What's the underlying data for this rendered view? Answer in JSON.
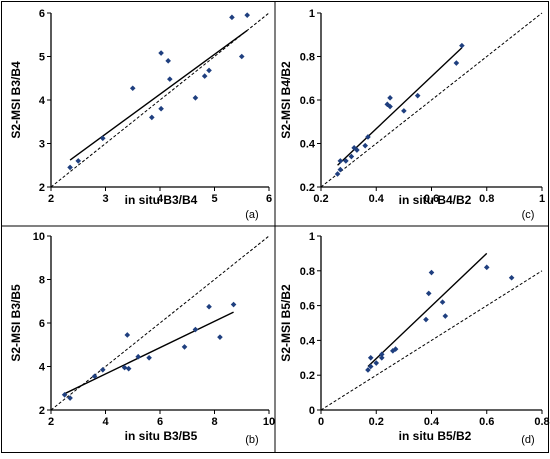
{
  "chart_data": [
    {
      "type": "scatter",
      "panel_label": "(a)",
      "xlabel": "in situ B3/B4",
      "ylabel": "S2-MSI B3/B4",
      "xlim": [
        2,
        6
      ],
      "ylim": [
        2,
        6
      ],
      "xticks": [
        2,
        3,
        4,
        5,
        6
      ],
      "yticks": [
        2,
        3,
        4,
        5,
        6
      ],
      "xtick_labels": [
        "2",
        "3",
        "4",
        "5",
        "6"
      ],
      "ytick_labels": [
        "2",
        "3",
        "4",
        "5",
        "6"
      ],
      "grid": false,
      "one_to_one_line": true,
      "points": [
        {
          "x": 2.35,
          "y": 2.45
        },
        {
          "x": 2.5,
          "y": 2.6
        },
        {
          "x": 2.95,
          "y": 3.12
        },
        {
          "x": 3.5,
          "y": 4.27
        },
        {
          "x": 3.85,
          "y": 3.6
        },
        {
          "x": 4.02,
          "y": 3.8
        },
        {
          "x": 4.02,
          "y": 5.08
        },
        {
          "x": 4.15,
          "y": 4.9
        },
        {
          "x": 4.18,
          "y": 4.48
        },
        {
          "x": 4.65,
          "y": 4.05
        },
        {
          "x": 4.82,
          "y": 4.55
        },
        {
          "x": 4.9,
          "y": 4.68
        },
        {
          "x": 5.32,
          "y": 5.9
        },
        {
          "x": 5.5,
          "y": 5.0
        },
        {
          "x": 5.6,
          "y": 5.95
        }
      ],
      "fit_line": [
        {
          "x": 2.35,
          "y": 2.62
        },
        {
          "x": 5.6,
          "y": 5.6
        }
      ]
    },
    {
      "type": "scatter",
      "panel_label": "(c)",
      "xlabel": "in situ B4/B2",
      "ylabel": "S2-MSI B4/B2",
      "xlim": [
        0.2,
        1
      ],
      "ylim": [
        0.2,
        1
      ],
      "xticks": [
        0.2,
        0.4,
        0.6,
        0.8,
        1
      ],
      "yticks": [
        0.2,
        0.4,
        0.6,
        0.8,
        1
      ],
      "xtick_labels": [
        "0.2",
        "0.4",
        "0.6",
        "0.8",
        "1"
      ],
      "ytick_labels": [
        "0.2",
        "0.4",
        "0.6",
        "0.8",
        "1"
      ],
      "grid": false,
      "one_to_one_line": true,
      "points": [
        {
          "x": 0.26,
          "y": 0.26
        },
        {
          "x": 0.27,
          "y": 0.28
        },
        {
          "x": 0.27,
          "y": 0.32
        },
        {
          "x": 0.29,
          "y": 0.32
        },
        {
          "x": 0.31,
          "y": 0.34
        },
        {
          "x": 0.32,
          "y": 0.38
        },
        {
          "x": 0.33,
          "y": 0.37
        },
        {
          "x": 0.36,
          "y": 0.39
        },
        {
          "x": 0.37,
          "y": 0.43
        },
        {
          "x": 0.44,
          "y": 0.58
        },
        {
          "x": 0.45,
          "y": 0.61
        },
        {
          "x": 0.45,
          "y": 0.57
        },
        {
          "x": 0.5,
          "y": 0.55
        },
        {
          "x": 0.55,
          "y": 0.62
        },
        {
          "x": 0.69,
          "y": 0.77
        },
        {
          "x": 0.71,
          "y": 0.85
        }
      ],
      "fit_line": [
        {
          "x": 0.26,
          "y": 0.3
        },
        {
          "x": 0.71,
          "y": 0.84
        }
      ]
    },
    {
      "type": "scatter",
      "panel_label": "(b)",
      "xlabel": "in situ B3/B5",
      "ylabel": "S2-MSI B3/B5",
      "xlim": [
        2,
        10
      ],
      "ylim": [
        2,
        10
      ],
      "xticks": [
        2,
        4,
        6,
        8,
        10
      ],
      "yticks": [
        2,
        4,
        6,
        8,
        10
      ],
      "xtick_labels": [
        "2",
        "4",
        "6",
        "8",
        "10"
      ],
      "ytick_labels": [
        "2",
        "4",
        "6",
        "8",
        "10"
      ],
      "grid": false,
      "one_to_one_line": true,
      "points": [
        {
          "x": 2.5,
          "y": 2.7
        },
        {
          "x": 2.7,
          "y": 2.55
        },
        {
          "x": 3.6,
          "y": 3.55
        },
        {
          "x": 3.9,
          "y": 3.85
        },
        {
          "x": 4.7,
          "y": 3.95
        },
        {
          "x": 4.8,
          "y": 5.45
        },
        {
          "x": 4.85,
          "y": 3.9
        },
        {
          "x": 5.2,
          "y": 4.45
        },
        {
          "x": 5.6,
          "y": 4.4
        },
        {
          "x": 6.9,
          "y": 4.9
        },
        {
          "x": 7.3,
          "y": 5.7
        },
        {
          "x": 7.8,
          "y": 6.75
        },
        {
          "x": 8.2,
          "y": 5.35
        },
        {
          "x": 8.7,
          "y": 6.85
        }
      ],
      "fit_line": [
        {
          "x": 2.5,
          "y": 2.75
        },
        {
          "x": 8.7,
          "y": 6.5
        }
      ]
    },
    {
      "type": "scatter",
      "panel_label": "(d)",
      "xlabel": "in situ B5/B2",
      "ylabel": "S2-MSI B5/B2",
      "xlim": [
        0,
        0.8
      ],
      "ylim": [
        0,
        1
      ],
      "xticks": [
        0,
        0.2,
        0.4,
        0.6,
        0.8
      ],
      "yticks": [
        0,
        0.2,
        0.4,
        0.6,
        0.8,
        1
      ],
      "xtick_labels": [
        "0",
        "0.2",
        "0.4",
        "0.6",
        "0.8"
      ],
      "ytick_labels": [
        "0",
        "0.2",
        "0.4",
        "0.6",
        "0.8",
        "1"
      ],
      "grid": false,
      "one_to_one_line": true,
      "points": [
        {
          "x": 0.17,
          "y": 0.23
        },
        {
          "x": 0.18,
          "y": 0.25
        },
        {
          "x": 0.18,
          "y": 0.3
        },
        {
          "x": 0.2,
          "y": 0.27
        },
        {
          "x": 0.22,
          "y": 0.3
        },
        {
          "x": 0.22,
          "y": 0.32
        },
        {
          "x": 0.26,
          "y": 0.34
        },
        {
          "x": 0.27,
          "y": 0.35
        },
        {
          "x": 0.38,
          "y": 0.52
        },
        {
          "x": 0.39,
          "y": 0.67
        },
        {
          "x": 0.4,
          "y": 0.79
        },
        {
          "x": 0.44,
          "y": 0.62
        },
        {
          "x": 0.45,
          "y": 0.54
        },
        {
          "x": 0.6,
          "y": 0.82
        },
        {
          "x": 0.69,
          "y": 0.76
        }
      ],
      "fit_line": [
        {
          "x": 0.17,
          "y": 0.25
        },
        {
          "x": 0.6,
          "y": 0.9
        }
      ]
    }
  ]
}
